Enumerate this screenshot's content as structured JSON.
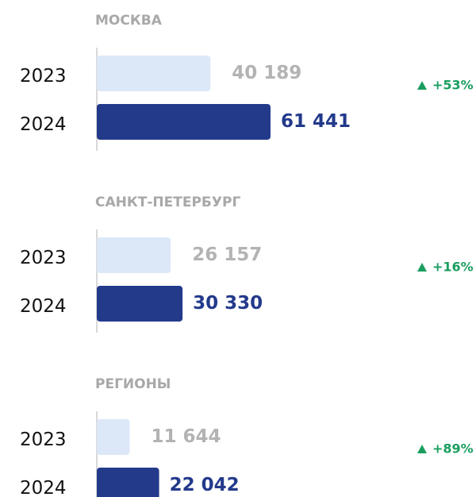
{
  "chart_data": [
    {
      "type": "bar",
      "title": "МОСКВА",
      "categories": [
        "2023",
        "2024"
      ],
      "values": [
        40189,
        61441
      ],
      "value_labels": [
        "40 189",
        "61 441"
      ],
      "colors": [
        "#dce8f8",
        "#233a8b"
      ],
      "label_colors": [
        "#b3b3b3",
        "#233a8b"
      ],
      "annotation": "+53%",
      "annotation_color": "#1a9e5f"
    },
    {
      "type": "bar",
      "title": "САНКТ-ПЕТЕРБУРГ",
      "categories": [
        "2023",
        "2024"
      ],
      "values": [
        26157,
        30330
      ],
      "value_labels": [
        "26 157",
        "30 330"
      ],
      "colors": [
        "#dce8f8",
        "#233a8b"
      ],
      "label_colors": [
        "#b3b3b3",
        "#233a8b"
      ],
      "annotation": "+16%",
      "annotation_color": "#1a9e5f"
    },
    {
      "type": "bar",
      "title": "РЕГИОНЫ",
      "categories": [
        "2023",
        "2024"
      ],
      "values": [
        11644,
        22042
      ],
      "value_labels": [
        "11 644",
        "22 042"
      ],
      "colors": [
        "#dce8f8",
        "#233a8b"
      ],
      "label_colors": [
        "#b3b3b3",
        "#233a8b"
      ],
      "annotation": "+89%",
      "annotation_color": "#1a9e5f"
    }
  ]
}
